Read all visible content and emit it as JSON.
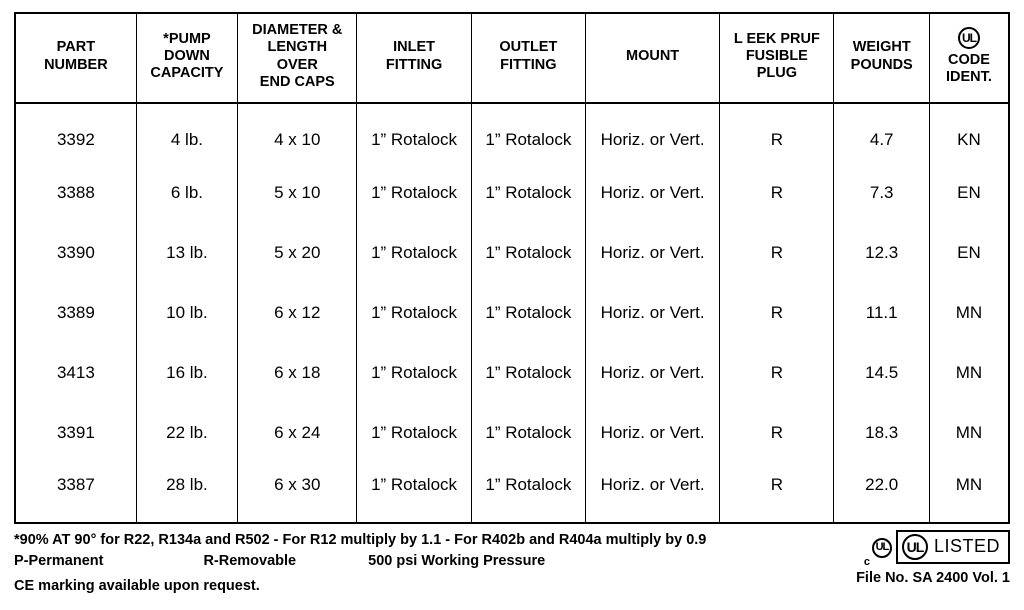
{
  "table": {
    "columns": [
      "PART\nNUMBER",
      "*PUMP\nDOWN\nCAPACITY",
      "DIAMETER &\nLENGTH\nOVER\nEND CAPS",
      "INLET\nFITTING",
      "OUTLET\nFITTING",
      "MOUNT",
      "L EEK PRUF\nFUSIBLE\nPLUG",
      "WEIGHT\nPOUNDS",
      "CODE\nIDENT."
    ],
    "col_widths_pct": [
      12.2,
      10.2,
      12.0,
      11.5,
      11.5,
      13.5,
      11.5,
      9.6,
      8.0
    ],
    "header_fontsize": 14.5,
    "body_fontsize": 17,
    "border_color": "#000000",
    "background_color": "#ffffff",
    "rows": [
      [
        "3392",
        "4 lb.",
        "4 x 10",
        "1” Rotalock",
        "1” Rotalock",
        "Horiz. or Vert.",
        "R",
        "4.7",
        "KN"
      ],
      [
        "3388",
        "6 lb.",
        "5 x 10",
        "1” Rotalock",
        "1” Rotalock",
        "Horiz. or Vert.",
        "R",
        "7.3",
        "EN"
      ],
      [
        "3390",
        "13 lb.",
        "5 x 20",
        "1” Rotalock",
        "1” Rotalock",
        "Horiz. or Vert.",
        "R",
        "12.3",
        "EN"
      ],
      [
        "3389",
        "10 lb.",
        "6 x 12",
        "1” Rotalock",
        "1” Rotalock",
        "Horiz. or Vert.",
        "R",
        "11.1",
        "MN"
      ],
      [
        "3413",
        "16 lb.",
        "6 x 18",
        "1” Rotalock",
        "1” Rotalock",
        "Horiz. or Vert.",
        "R",
        "14.5",
        "MN"
      ],
      [
        "3391",
        "22 lb.",
        "6 x 24",
        "1” Rotalock",
        "1” Rotalock",
        "Horiz. or Vert.",
        "R",
        "18.3",
        "MN"
      ],
      [
        "3387",
        "28 lb.",
        "6 x 30",
        "1” Rotalock",
        "1” Rotalock",
        "Horiz. or Vert.",
        "R",
        "22.0",
        "MN"
      ]
    ],
    "ul_header_label": "UL"
  },
  "footnotes": {
    "line1": "*90% AT 90° for R22, R134a and R502 - For R12 multiply by 1.1 - For R402b and R404a multiply by 0.9",
    "perm": "P-Permanent",
    "rem": "R-Removable",
    "press": "500 psi Working Pressure",
    "ce": "CE  marking available upon request."
  },
  "badges": {
    "c_prefix": "c",
    "ul_glyph": "UL",
    "listed": "LISTED",
    "file": "File No. SA 2400 Vol. 1"
  }
}
